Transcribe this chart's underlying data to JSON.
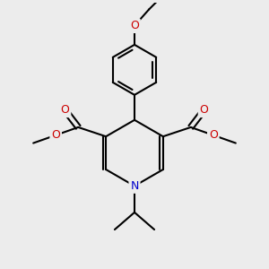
{
  "bg_color": "#ececec",
  "bond_color": "#000000",
  "N_color": "#0000cc",
  "O_color": "#cc0000",
  "lw": 1.5,
  "fig_size": [
    3.0,
    3.0
  ],
  "dpi": 100,
  "xlim": [
    0,
    10
  ],
  "ylim": [
    0,
    10
  ]
}
